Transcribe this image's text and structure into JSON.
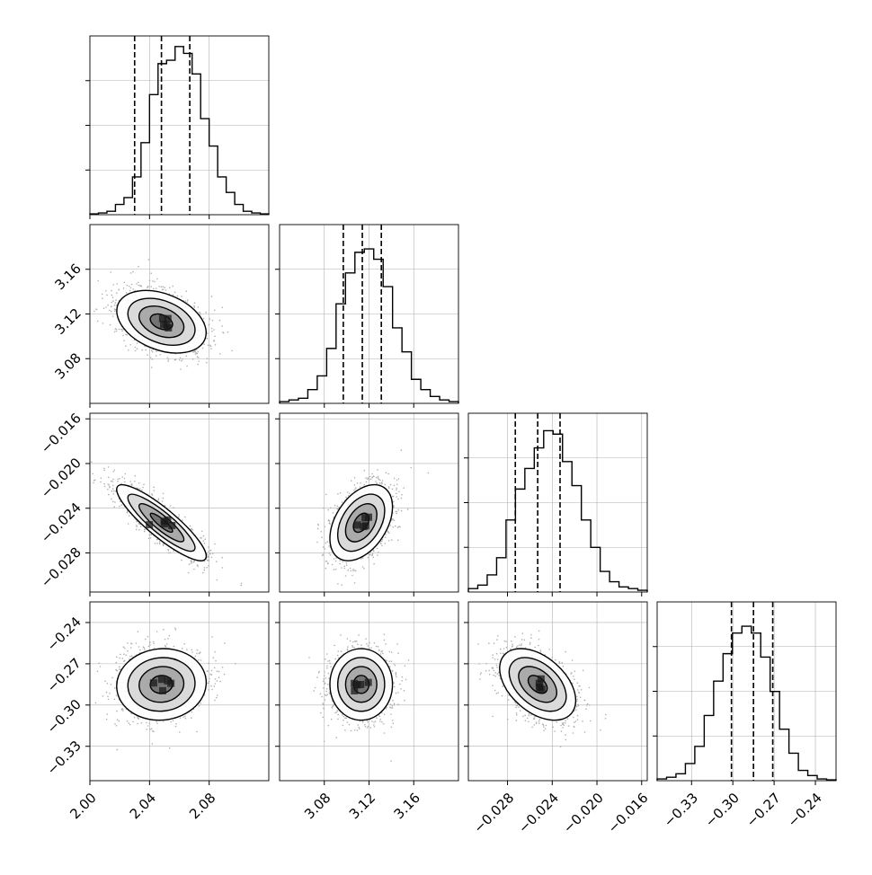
{
  "chart_data": {
    "type": "corner",
    "parameters": [
      {
        "range": [
          2.0,
          2.12
        ],
        "ticks": [
          2.0,
          2.04,
          2.08
        ],
        "tick_labels": [
          "2.00",
          "2.04",
          "2.08"
        ],
        "quantiles": [
          2.03,
          2.048,
          2.067
        ],
        "hist": [
          0.005,
          0.01,
          0.02,
          0.06,
          0.1,
          0.22,
          0.42,
          0.7,
          0.88,
          0.9,
          0.98,
          0.94,
          0.82,
          0.56,
          0.4,
          0.22,
          0.13,
          0.06,
          0.02,
          0.01,
          0.005
        ]
      },
      {
        "range": [
          3.04,
          3.2
        ],
        "ticks": [
          3.08,
          3.12,
          3.16
        ],
        "tick_labels": [
          "3.08",
          "3.12",
          "3.16"
        ],
        "quantiles": [
          3.097,
          3.114,
          3.131
        ],
        "hist": [
          0.01,
          0.02,
          0.03,
          0.08,
          0.16,
          0.32,
          0.58,
          0.76,
          0.88,
          0.9,
          0.84,
          0.68,
          0.44,
          0.3,
          0.14,
          0.08,
          0.04,
          0.02,
          0.01
        ]
      },
      {
        "range": [
          -0.0315,
          -0.0155
        ],
        "ticks": [
          -0.028,
          -0.024,
          -0.02,
          -0.016
        ],
        "tick_labels": [
          "−0.028",
          "−0.024",
          "−0.020",
          "−0.016"
        ],
        "quantiles": [
          -0.0273,
          -0.0253,
          -0.0233
        ],
        "hist": [
          0.02,
          0.04,
          0.1,
          0.2,
          0.42,
          0.6,
          0.72,
          0.84,
          0.94,
          0.92,
          0.76,
          0.62,
          0.42,
          0.26,
          0.12,
          0.06,
          0.03,
          0.02,
          0.01
        ]
      },
      {
        "range": [
          -0.355,
          -0.225
        ],
        "ticks": [
          -0.33,
          -0.3,
          -0.27,
          -0.24
        ],
        "tick_labels": [
          "−0.33",
          "−0.30",
          "−0.27",
          "−0.24"
        ],
        "quantiles": [
          -0.301,
          -0.285,
          -0.271
        ],
        "hist": [
          0.01,
          0.02,
          0.04,
          0.1,
          0.2,
          0.38,
          0.58,
          0.74,
          0.86,
          0.9,
          0.86,
          0.72,
          0.52,
          0.3,
          0.16,
          0.06,
          0.03,
          0.01,
          0.005
        ]
      }
    ],
    "pairs": [
      {
        "row": 1,
        "col": 0,
        "center": [
          2.048,
          3.113
        ],
        "sigma": [
          0.015,
          0.014
        ],
        "corr": -0.35
      },
      {
        "row": 2,
        "col": 0,
        "center": [
          2.048,
          -0.0253
        ],
        "sigma": [
          0.015,
          0.0017
        ],
        "corr": -0.88
      },
      {
        "row": 2,
        "col": 1,
        "center": [
          3.113,
          -0.0253
        ],
        "sigma": [
          0.014,
          0.0017
        ],
        "corr": 0.42
      },
      {
        "row": 3,
        "col": 0,
        "center": [
          2.048,
          -0.285
        ],
        "sigma": [
          0.015,
          0.013
        ],
        "corr": 0.05
      },
      {
        "row": 3,
        "col": 1,
        "center": [
          3.113,
          -0.285
        ],
        "sigma": [
          0.014,
          0.013
        ],
        "corr": 0.0
      },
      {
        "row": 3,
        "col": 2,
        "center": [
          -0.0253,
          -0.285
        ],
        "sigma": [
          0.0017,
          0.013
        ],
        "corr": -0.45
      }
    ],
    "contour_levels_sigma": [
      0.5,
      1.0,
      1.5,
      2.0
    ],
    "grid": true,
    "colors": {
      "hist": "#000000",
      "points": "#b0b0b0",
      "contour": "#000000",
      "grid": "#b0b0b0"
    }
  }
}
